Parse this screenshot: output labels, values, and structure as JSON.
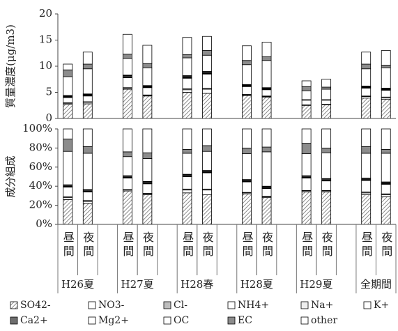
{
  "chart_data": [
    {
      "type": "stacked-bar",
      "y_label": "質量濃度(μg/m3)",
      "ylim": [
        0,
        20
      ],
      "yticks": [
        0,
        5,
        10,
        15,
        20
      ],
      "series": [
        {
          "name": "SO42-",
          "color": "#9a9a9a",
          "pattern": "hatch",
          "values": [
            2.7,
            2.8,
            5.6,
            4.3,
            5.0,
            4.8,
            4.4,
            4.1,
            2.5,
            2.6,
            3.9,
            3.7
          ]
        },
        {
          "name": "NO3-",
          "color": "#ffffff",
          "values": [
            0.2,
            0.3,
            0.2,
            0.1,
            0.5,
            0.8,
            0.1,
            0.1,
            0.1,
            0.1,
            0.3,
            0.3
          ]
        },
        {
          "name": "Cl-",
          "color": "#bdbdbd",
          "values": [
            0.1,
            0.1,
            0.1,
            0.1,
            0.2,
            0.2,
            0.1,
            0.1,
            0,
            0,
            0.1,
            0.1
          ]
        },
        {
          "name": "NH4+",
          "color": "#ffffff",
          "values": [
            1.0,
            1.1,
            1.9,
            1.4,
            2.0,
            2.7,
            1.5,
            1.2,
            0.9,
            0.8,
            1.5,
            1.3
          ]
        },
        {
          "name": "Na+",
          "color": "#eeeeee",
          "values": [
            0.1,
            0.1,
            0.1,
            0.1,
            0.1,
            0.1,
            0.1,
            0.1,
            0,
            0,
            0.1,
            0.1
          ]
        },
        {
          "name": "K+",
          "color": "#ffffff",
          "values": [
            0.1,
            0.1,
            0.1,
            0.1,
            0.1,
            0.1,
            0.1,
            0.1,
            0,
            0,
            0.1,
            0.1
          ]
        },
        {
          "name": "Ca2+",
          "color": "#6e6e6e",
          "values": [
            0.1,
            0.1,
            0.2,
            0.1,
            0.2,
            0.2,
            0.1,
            0.1,
            0.1,
            0.1,
            0.1,
            0.1
          ]
        },
        {
          "name": "Mg2+",
          "color": "#ffffff",
          "values": [
            0.1,
            0.1,
            0.1,
            0.1,
            0.1,
            0.1,
            0.1,
            0.1,
            0,
            0,
            0.1,
            0.1
          ]
        },
        {
          "name": "OC",
          "color": "#ffffff",
          "values": [
            3.6,
            4.8,
            3.2,
            3.4,
            3.4,
            3.1,
            3.8,
            5.2,
            1.7,
            2.0,
            3.3,
            3.9
          ]
        },
        {
          "name": "EC",
          "color": "#8c8c8c",
          "values": [
            1.3,
            0.9,
            0.8,
            0.8,
            0.6,
            0.9,
            0.8,
            0.7,
            0.8,
            0.4,
            0.9,
            0.5
          ]
        },
        {
          "name": "other",
          "color": "#ffffff",
          "values": [
            1.1,
            2.3,
            3.8,
            3.5,
            3.3,
            2.7,
            2.8,
            2.8,
            1.1,
            1.5,
            2.3,
            2.8
          ]
        }
      ]
    },
    {
      "type": "stacked-bar",
      "y_label": "成分組成",
      "ylim": [
        0,
        100
      ],
      "yticks": [
        {
          "value": 0,
          "label": "0%"
        },
        {
          "value": 20,
          "label": "20%"
        },
        {
          "value": 40,
          "label": "40%"
        },
        {
          "value": 60,
          "label": "60%"
        },
        {
          "value": 80,
          "label": "80%"
        },
        {
          "value": 100,
          "label": "100%"
        }
      ],
      "categories": [
        "昼間",
        "夜間",
        "昼間",
        "夜間",
        "昼間",
        "夜間",
        "昼間",
        "夜間",
        "昼間",
        "夜間",
        "昼間",
        "夜間"
      ],
      "groups": [
        "H26夏",
        "H27夏",
        "H28春",
        "H28夏",
        "H29夏",
        "全期間"
      ],
      "series": [
        {
          "color": "#9a9a9a",
          "pattern": "hatch",
          "values": [
            26,
            22,
            35,
            31,
            33,
            31,
            32,
            28,
            34,
            34,
            31,
            29
          ]
        },
        {
          "color": "#ffffff",
          "values": [
            2,
            2,
            1,
            1,
            3,
            5,
            1,
            1,
            1,
            1,
            2,
            2
          ]
        },
        {
          "color": "#bdbdbd",
          "values": [
            1,
            1,
            0.5,
            0.5,
            1,
            1,
            0.5,
            0.5,
            0.5,
            0.5,
            1,
            1
          ]
        },
        {
          "color": "#ffffff",
          "values": [
            10,
            9,
            12,
            10,
            13,
            17,
            11,
            8,
            13,
            10,
            12,
            10
          ]
        },
        {
          "color": "#eeeeee",
          "values": [
            0.5,
            0.5,
            0.5,
            0.5,
            0.5,
            0.5,
            0.5,
            0.5,
            0.5,
            0.5,
            0.5,
            0.5
          ]
        },
        {
          "color": "#ffffff",
          "values": [
            0.5,
            0.5,
            0.5,
            0.5,
            0.5,
            0.5,
            0.5,
            0.5,
            0.5,
            0.5,
            0.5,
            0.5
          ]
        },
        {
          "color": "#6e6e6e",
          "values": [
            1,
            1,
            1,
            1,
            1,
            1,
            1,
            1,
            1,
            1,
            1,
            1
          ]
        },
        {
          "color": "#ffffff",
          "values": [
            0.5,
            0.5,
            0.5,
            0.5,
            0.5,
            0.5,
            0.5,
            0.5,
            0.5,
            0.5,
            0.5,
            0.5
          ]
        },
        {
          "color": "#ffffff",
          "values": [
            35,
            38,
            20,
            24,
            22,
            20,
            27,
            36,
            23,
            27,
            26,
            30
          ]
        },
        {
          "color": "#8c8c8c",
          "values": [
            13,
            7,
            5,
            6,
            4,
            6,
            6,
            5,
            11,
            5,
            7,
            4
          ]
        },
        {
          "color": "#ffffff",
          "values": [
            10.5,
            18.5,
            24,
            25,
            21.5,
            17.5,
            20,
            19,
            15,
            20,
            18.5,
            21.5
          ]
        }
      ]
    }
  ]
}
